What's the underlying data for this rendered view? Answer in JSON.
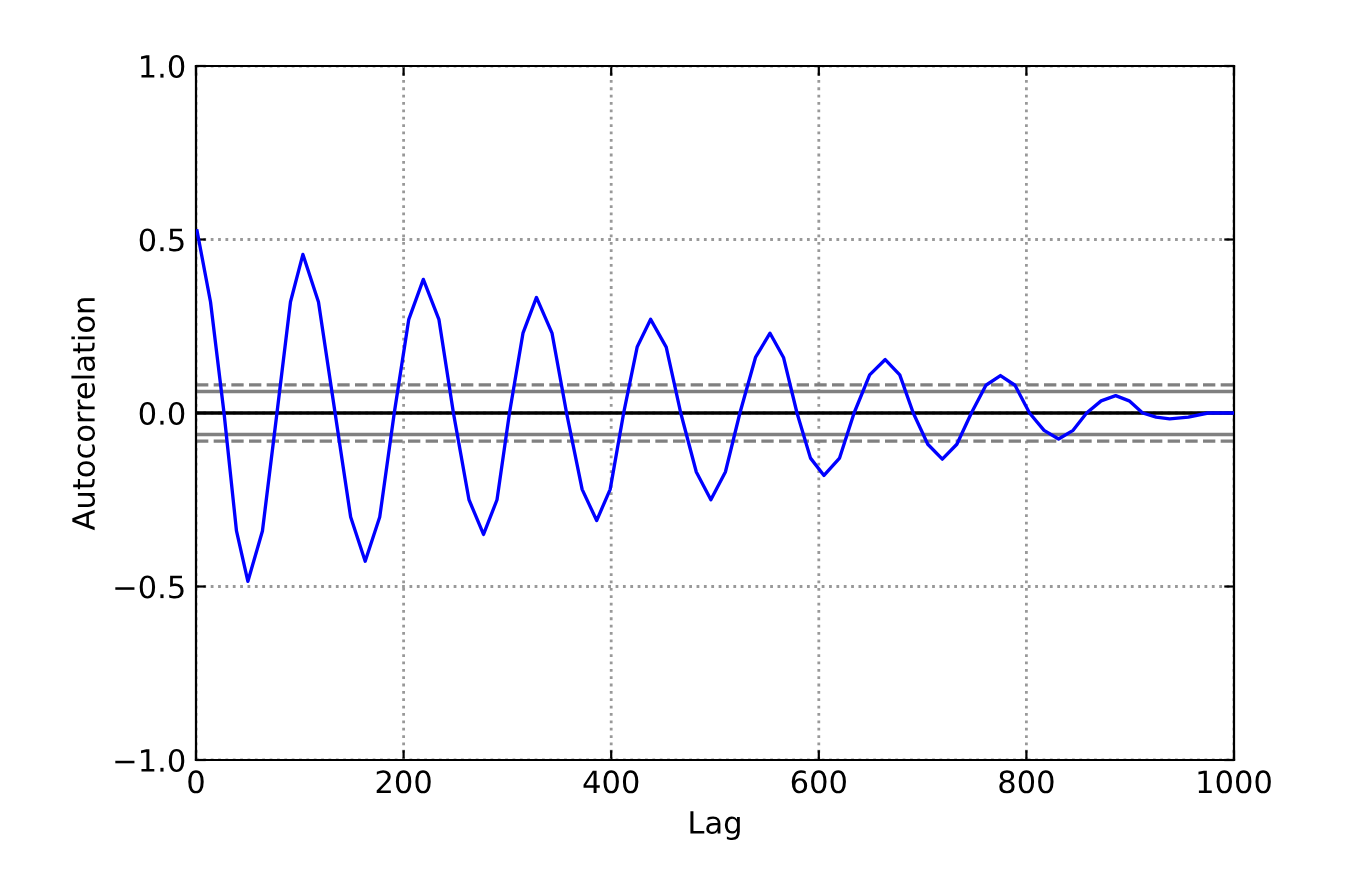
{
  "chart_data": {
    "type": "line",
    "xlabel": "Lag",
    "ylabel": "Autocorrelation",
    "xlim": [
      0,
      1000
    ],
    "ylim": [
      -1.0,
      1.0
    ],
    "xticks": [
      0,
      200,
      400,
      600,
      800,
      1000
    ],
    "yticks": [
      {
        "value": -1.0,
        "label": "−1.0"
      },
      {
        "value": -0.5,
        "label": "−0.5"
      },
      {
        "value": 0.0,
        "label": "0.0"
      },
      {
        "value": 0.5,
        "label": "0.5"
      },
      {
        "value": 1.0,
        "label": "1.0"
      }
    ],
    "grid": true,
    "legend": false,
    "marker": "none",
    "line_style": "solid",
    "series": [
      {
        "color": "#0000ff",
        "x": [
          1,
          14,
          27,
          39,
          50,
          64,
          78,
          91,
          103,
          118,
          134,
          149,
          163,
          177,
          191,
          205,
          219,
          234,
          248,
          263,
          277,
          290,
          302,
          315,
          328,
          343,
          357,
          372,
          386,
          399,
          412,
          425,
          438,
          453,
          467,
          482,
          496,
          510,
          524,
          539,
          553,
          566,
          579,
          592,
          605,
          620,
          634,
          649,
          664,
          678,
          691,
          705,
          719,
          733,
          747,
          761,
          775,
          789,
          803,
          817,
          831,
          845,
          858,
          872,
          886,
          899,
          912,
          925,
          938,
          956,
          975,
          1000
        ],
        "values": [
          0.525,
          0.32,
          0,
          -0.34,
          -0.485,
          -0.34,
          0,
          0.32,
          0.457,
          0.32,
          0,
          -0.3,
          -0.427,
          -0.3,
          0,
          0.27,
          0.385,
          0.27,
          0,
          -0.25,
          -0.35,
          -0.25,
          0,
          0.23,
          0.333,
          0.23,
          0,
          -0.22,
          -0.31,
          -0.22,
          0,
          0.19,
          0.27,
          0.19,
          0,
          -0.17,
          -0.25,
          -0.17,
          0,
          0.16,
          0.23,
          0.16,
          0,
          -0.13,
          -0.18,
          -0.13,
          0,
          0.11,
          0.154,
          0.11,
          0,
          -0.09,
          -0.133,
          -0.09,
          0,
          0.08,
          0.108,
          0.08,
          0,
          -0.05,
          -0.075,
          -0.05,
          0,
          0.035,
          0.05,
          0.035,
          0,
          -0.012,
          -0.017,
          -0.012,
          0,
          0.0
        ]
      }
    ],
    "ref_lines": [
      {
        "axis": "y",
        "value": 0.0,
        "color": "#000000",
        "line_style": "solid"
      },
      {
        "axis": "y",
        "value": 0.062,
        "color": "#808080",
        "line_style": "solid"
      },
      {
        "axis": "y",
        "value": -0.062,
        "color": "#808080",
        "line_style": "solid"
      },
      {
        "axis": "y",
        "value": 0.081,
        "color": "#808080",
        "line_style": "dashed"
      },
      {
        "axis": "y",
        "value": -0.081,
        "color": "#808080",
        "line_style": "dashed"
      }
    ]
  }
}
